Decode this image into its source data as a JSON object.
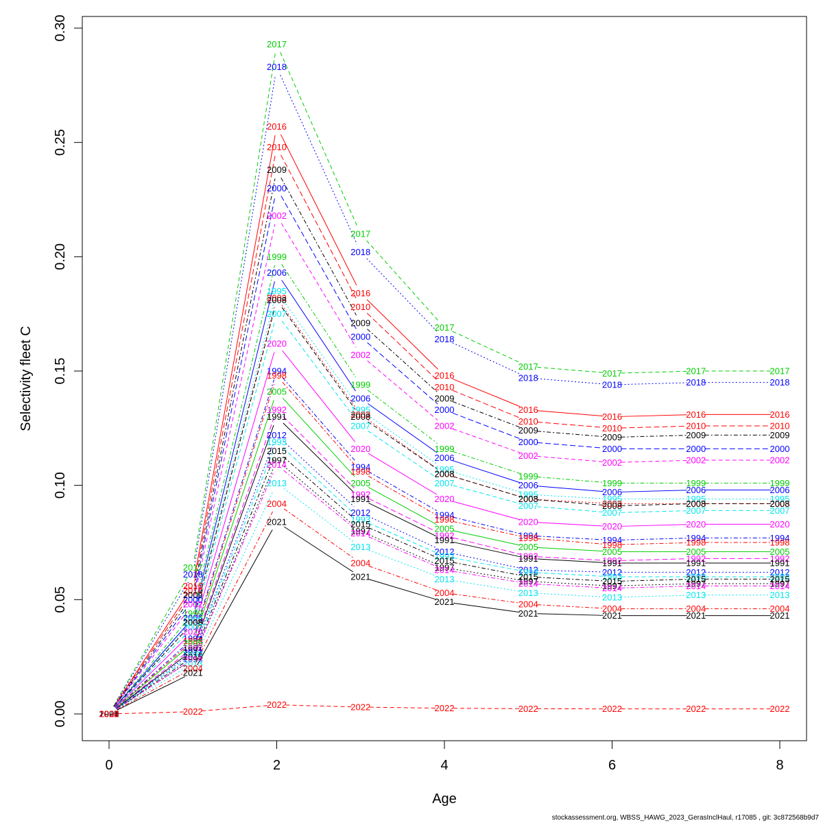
{
  "chart_data": {
    "type": "line",
    "title": "",
    "xlabel": "Age",
    "ylabel": "Selectivity fleet C",
    "xlim": [
      0,
      8
    ],
    "ylim": [
      0,
      0.3
    ],
    "xticks": [
      0,
      2,
      4,
      6,
      8
    ],
    "yticks": [
      0.0,
      0.05,
      0.1,
      0.15,
      0.2,
      0.25,
      0.3
    ],
    "ytick_labels": [
      "0.00",
      "0.05",
      "0.10",
      "0.15",
      "0.20",
      "0.25",
      "0.30"
    ],
    "grid": false,
    "legend": "none",
    "x": [
      0,
      1,
      2,
      3,
      4,
      5,
      6,
      7,
      8
    ],
    "series": [
      {
        "name": "2017",
        "color": "#00cd00",
        "dash": "6,4",
        "values": [
          0,
          0.064,
          0.293,
          0.21,
          0.169,
          0.152,
          0.149,
          0.15,
          0.15
        ]
      },
      {
        "name": "2018",
        "color": "#0000ff",
        "dash": "2,3",
        "values": [
          0,
          0.061,
          0.283,
          0.202,
          0.164,
          0.147,
          0.144,
          0.145,
          0.145
        ]
      },
      {
        "name": "2016",
        "color": "#ff0000",
        "dash": "",
        "values": [
          0,
          0.056,
          0.257,
          0.184,
          0.148,
          0.133,
          0.13,
          0.131,
          0.131
        ]
      },
      {
        "name": "2010",
        "color": "#ff0000",
        "dash": "8,4",
        "values": [
          0,
          0.054,
          0.248,
          0.178,
          0.143,
          0.128,
          0.125,
          0.126,
          0.126
        ]
      },
      {
        "name": "2009",
        "color": "#000000",
        "dash": "6,3,2,3",
        "values": [
          0,
          0.052,
          0.238,
          0.171,
          0.138,
          0.124,
          0.121,
          0.122,
          0.122
        ]
      },
      {
        "name": "2000",
        "color": "#0000ff",
        "dash": "8,4",
        "values": [
          0,
          0.05,
          0.23,
          0.165,
          0.133,
          0.119,
          0.116,
          0.116,
          0.116
        ]
      },
      {
        "name": "2002",
        "color": "#ff00ff",
        "dash": "6,4",
        "values": [
          0,
          0.048,
          0.218,
          0.157,
          0.126,
          0.113,
          0.11,
          0.111,
          0.111
        ]
      },
      {
        "name": "1999",
        "color": "#00cd00",
        "dash": "6,3,2,3",
        "values": [
          0,
          0.044,
          0.2,
          0.144,
          0.116,
          0.104,
          0.101,
          0.101,
          0.101
        ]
      },
      {
        "name": "2006",
        "color": "#0000ff",
        "dash": "",
        "values": [
          0,
          0.042,
          0.193,
          0.138,
          0.112,
          0.1,
          0.097,
          0.098,
          0.098
        ]
      },
      {
        "name": "1995",
        "color": "#00e5ee",
        "dash": "2,3",
        "values": [
          0,
          0.041,
          0.185,
          0.133,
          0.107,
          0.096,
          0.094,
          0.094,
          0.094
        ]
      },
      {
        "name": "2003",
        "color": "#ff0000",
        "dash": "2,3",
        "values": [
          0,
          0.04,
          0.182,
          0.131,
          0.105,
          0.094,
          0.092,
          0.092,
          0.092
        ]
      },
      {
        "name": "2008",
        "color": "#000000",
        "dash": "6,4",
        "values": [
          0,
          0.04,
          0.181,
          0.13,
          0.105,
          0.094,
          0.091,
          0.092,
          0.092
        ]
      },
      {
        "name": "2007",
        "color": "#00e5ee",
        "dash": "6,4",
        "values": [
          0,
          0.038,
          0.175,
          0.126,
          0.101,
          0.091,
          0.088,
          0.089,
          0.089
        ]
      },
      {
        "name": "2020",
        "color": "#ff00ff",
        "dash": "",
        "values": [
          0,
          0.036,
          0.162,
          0.116,
          0.094,
          0.084,
          0.082,
          0.083,
          0.083
        ]
      },
      {
        "name": "1994",
        "color": "#0000ff",
        "dash": "6,3,2,3",
        "values": [
          0,
          0.033,
          0.15,
          0.108,
          0.087,
          0.078,
          0.076,
          0.077,
          0.077
        ]
      },
      {
        "name": "1998",
        "color": "#ff0000",
        "dash": "6,3,2,3",
        "values": [
          0,
          0.032,
          0.148,
          0.106,
          0.085,
          0.077,
          0.074,
          0.075,
          0.075
        ]
      },
      {
        "name": "2005",
        "color": "#00cd00",
        "dash": "",
        "values": [
          0,
          0.031,
          0.141,
          0.101,
          0.081,
          0.073,
          0.071,
          0.071,
          0.071
        ]
      },
      {
        "name": "1992",
        "color": "#ff00ff",
        "dash": "8,4",
        "values": [
          0,
          0.029,
          0.133,
          0.096,
          0.078,
          0.069,
          0.067,
          0.068,
          0.068
        ]
      },
      {
        "name": "1991",
        "color": "#000000",
        "dash": "",
        "values": [
          0,
          0.028,
          0.13,
          0.094,
          0.076,
          0.068,
          0.066,
          0.066,
          0.066
        ]
      },
      {
        "name": "2012",
        "color": "#0000ff",
        "dash": "2,3",
        "values": [
          0,
          0.027,
          0.122,
          0.088,
          0.071,
          0.063,
          0.062,
          0.062,
          0.062
        ]
      },
      {
        "name": "1993",
        "color": "#00e5ee",
        "dash": "6,4",
        "values": [
          0,
          0.026,
          0.119,
          0.085,
          0.069,
          0.062,
          0.06,
          0.06,
          0.06
        ]
      },
      {
        "name": "2015",
        "color": "#000000",
        "dash": "6,3,2,3",
        "values": [
          0,
          0.025,
          0.115,
          0.083,
          0.067,
          0.06,
          0.058,
          0.059,
          0.059
        ]
      },
      {
        "name": "1997",
        "color": "#000000",
        "dash": "2,3",
        "values": [
          0,
          0.024,
          0.111,
          0.08,
          0.064,
          0.058,
          0.056,
          0.057,
          0.057
        ]
      },
      {
        "name": "2014",
        "color": "#ff00ff",
        "dash": "6,3,2,3",
        "values": [
          0,
          0.024,
          0.109,
          0.079,
          0.063,
          0.057,
          0.055,
          0.056,
          0.056
        ]
      },
      {
        "name": "2013",
        "color": "#00e5ee",
        "dash": "2,3",
        "values": [
          0,
          0.022,
          0.101,
          0.073,
          0.059,
          0.053,
          0.051,
          0.052,
          0.052
        ]
      },
      {
        "name": "2004",
        "color": "#ff0000",
        "dash": "6,3,2,3",
        "values": [
          0,
          0.02,
          0.092,
          0.066,
          0.053,
          0.048,
          0.046,
          0.046,
          0.046
        ]
      },
      {
        "name": "2021",
        "color": "#000000",
        "dash": "",
        "values": [
          0,
          0.018,
          0.084,
          0.06,
          0.049,
          0.044,
          0.043,
          0.043,
          0.043
        ]
      },
      {
        "name": "2022",
        "color": "#ff0000",
        "dash": "6,4",
        "values": [
          0,
          0.001,
          0.004,
          0.003,
          0.0025,
          0.0023,
          0.0022,
          0.0022,
          0.0022
        ]
      }
    ]
  },
  "footer_text": "stockassessment.org, WBSS_HAWG_2023_GerasInclHaul, r17085 , git: 3c872568b9d7"
}
